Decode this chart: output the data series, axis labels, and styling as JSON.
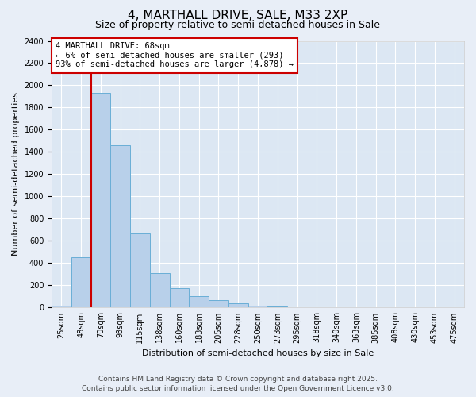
{
  "title": "4, MARTHALL DRIVE, SALE, M33 2XP",
  "subtitle": "Size of property relative to semi-detached houses in Sale",
  "xlabel": "Distribution of semi-detached houses by size in Sale",
  "ylabel": "Number of semi-detached properties",
  "footer_line1": "Contains HM Land Registry data © Crown copyright and database right 2025.",
  "footer_line2": "Contains public sector information licensed under the Open Government Licence v3.0.",
  "categories": [
    "25sqm",
    "48sqm",
    "70sqm",
    "93sqm",
    "115sqm",
    "138sqm",
    "160sqm",
    "183sqm",
    "205sqm",
    "228sqm",
    "250sqm",
    "273sqm",
    "295sqm",
    "318sqm",
    "340sqm",
    "363sqm",
    "385sqm",
    "408sqm",
    "430sqm",
    "453sqm",
    "475sqm"
  ],
  "values": [
    20,
    450,
    1930,
    1460,
    670,
    310,
    175,
    100,
    65,
    40,
    20,
    10,
    5,
    2,
    1,
    1,
    0,
    0,
    0,
    0,
    0
  ],
  "bar_color": "#b8d0ea",
  "bar_edge_color": "#6aaed6",
  "red_line_index": 2,
  "red_line_color": "#cc0000",
  "annotation_text": "4 MARTHALL DRIVE: 68sqm\n← 6% of semi-detached houses are smaller (293)\n93% of semi-detached houses are larger (4,878) →",
  "annotation_box_color": "#ffffff",
  "annotation_box_edge": "#cc0000",
  "ylim": [
    0,
    2400
  ],
  "yticks": [
    0,
    200,
    400,
    600,
    800,
    1000,
    1200,
    1400,
    1600,
    1800,
    2000,
    2200,
    2400
  ],
  "background_color": "#e8eef7",
  "plot_bg_color": "#dce7f3",
  "grid_color": "#ffffff",
  "title_fontsize": 11,
  "subtitle_fontsize": 9,
  "ylabel_fontsize": 8,
  "xlabel_fontsize": 8,
  "tick_fontsize": 7,
  "footer_fontsize": 6.5
}
